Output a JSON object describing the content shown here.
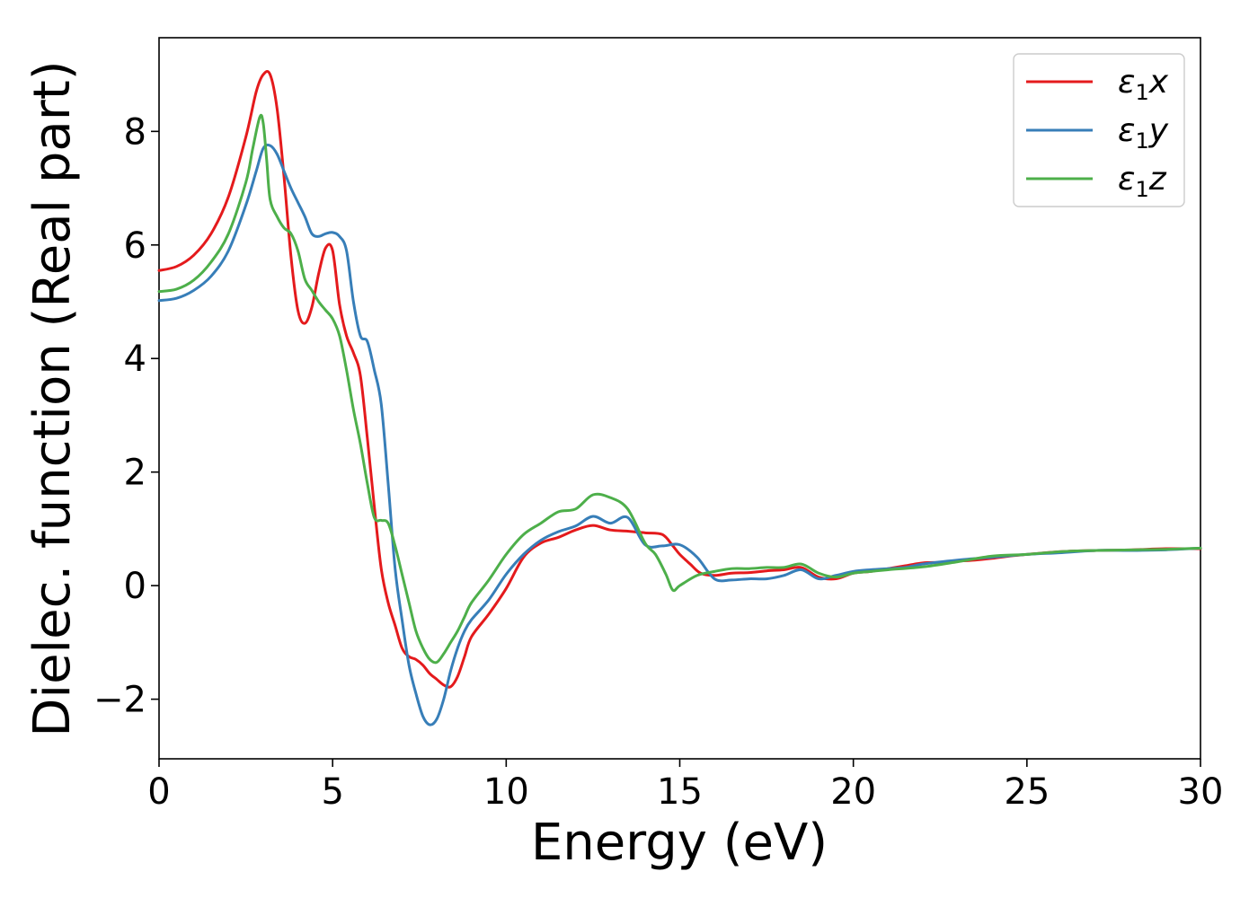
{
  "chart_data": {
    "type": "line",
    "xlabel": "Energy (eV)",
    "ylabel": "Dielec. function (Real part)",
    "xlim": [
      0,
      30
    ],
    "ylim": [
      -3.05,
      9.65
    ],
    "xticks": [
      0,
      5,
      10,
      15,
      20,
      25,
      30
    ],
    "yticks": [
      -2,
      0,
      2,
      4,
      6,
      8
    ],
    "grid": false,
    "legend_position": "top-right",
    "series": [
      {
        "name": "ε₁x",
        "legend_base": "ε",
        "legend_sub": "1",
        "legend_var": "x",
        "color": "#e41a1c",
        "x": [
          0,
          0.5,
          1,
          1.5,
          2,
          2.5,
          2.8,
          3.0,
          3.2,
          3.4,
          3.6,
          3.8,
          4.0,
          4.2,
          4.4,
          4.6,
          4.8,
          5.0,
          5.2,
          5.4,
          5.6,
          5.8,
          6.0,
          6.2,
          6.4,
          6.6,
          6.8,
          7.0,
          7.2,
          7.4,
          7.6,
          7.8,
          8.0,
          8.2,
          8.4,
          8.6,
          8.8,
          9.0,
          9.5,
          10.0,
          10.5,
          11.0,
          11.5,
          12.0,
          12.5,
          13.0,
          13.5,
          14.0,
          14.5,
          14.8,
          15.0,
          15.3,
          15.6,
          16.0,
          16.5,
          17.0,
          17.5,
          18.0,
          18.5,
          19.0,
          19.5,
          20.0,
          20.5,
          21.0,
          21.5,
          22.0,
          22.5,
          23.0,
          23.5,
          24.0,
          24.5,
          25.0,
          26.0,
          27.0,
          28.0,
          29.0,
          30.0
        ],
        "y": [
          5.55,
          5.62,
          5.82,
          6.2,
          6.85,
          7.9,
          8.7,
          9.0,
          9.0,
          8.4,
          7.2,
          5.8,
          4.85,
          4.62,
          4.9,
          5.5,
          5.95,
          5.9,
          4.95,
          4.4,
          4.1,
          3.7,
          2.6,
          1.4,
          0.3,
          -0.3,
          -0.7,
          -1.1,
          -1.25,
          -1.3,
          -1.4,
          -1.55,
          -1.65,
          -1.75,
          -1.78,
          -1.6,
          -1.25,
          -0.9,
          -0.5,
          -0.05,
          0.5,
          0.75,
          0.85,
          0.98,
          1.06,
          0.98,
          0.96,
          0.93,
          0.9,
          0.7,
          0.55,
          0.38,
          0.22,
          0.18,
          0.22,
          0.23,
          0.26,
          0.28,
          0.32,
          0.15,
          0.12,
          0.22,
          0.25,
          0.3,
          0.35,
          0.4,
          0.41,
          0.43,
          0.45,
          0.48,
          0.52,
          0.55,
          0.6,
          0.62,
          0.63,
          0.65,
          0.65
        ]
      },
      {
        "name": "ε₁y",
        "legend_base": "ε",
        "legend_sub": "1",
        "legend_var": "y",
        "color": "#377eb8",
        "x": [
          0,
          0.5,
          1,
          1.5,
          2,
          2.5,
          2.8,
          3.0,
          3.2,
          3.4,
          3.6,
          3.8,
          4.0,
          4.2,
          4.4,
          4.6,
          4.8,
          5.0,
          5.2,
          5.4,
          5.6,
          5.8,
          6.0,
          6.2,
          6.4,
          6.6,
          6.8,
          7.0,
          7.2,
          7.4,
          7.6,
          7.8,
          8.0,
          8.2,
          8.4,
          8.6,
          8.8,
          9.0,
          9.5,
          10.0,
          10.5,
          11.0,
          11.5,
          12.0,
          12.5,
          13.0,
          13.5,
          14.0,
          14.5,
          15.0,
          15.5,
          16.0,
          16.5,
          17.0,
          17.5,
          18.0,
          18.5,
          19.0,
          19.5,
          20.0,
          20.5,
          21.0,
          21.5,
          22.0,
          23.0,
          24.0,
          25.0,
          26.0,
          27.0,
          28.0,
          29.0,
          30.0
        ],
        "y": [
          5.02,
          5.06,
          5.2,
          5.45,
          5.9,
          6.7,
          7.3,
          7.7,
          7.75,
          7.6,
          7.3,
          7.0,
          6.75,
          6.5,
          6.2,
          6.15,
          6.2,
          6.22,
          6.15,
          5.9,
          5.0,
          4.4,
          4.3,
          3.8,
          3.2,
          1.8,
          0.3,
          -0.6,
          -1.4,
          -1.9,
          -2.3,
          -2.45,
          -2.35,
          -2.0,
          -1.5,
          -1.1,
          -0.8,
          -0.6,
          -0.25,
          0.2,
          0.55,
          0.8,
          0.95,
          1.05,
          1.22,
          1.1,
          1.2,
          0.72,
          0.7,
          0.72,
          0.5,
          0.12,
          0.1,
          0.12,
          0.12,
          0.18,
          0.28,
          0.12,
          0.18,
          0.25,
          0.28,
          0.3,
          0.32,
          0.38,
          0.45,
          0.5,
          0.55,
          0.58,
          0.62,
          0.62,
          0.63,
          0.66
        ]
      },
      {
        "name": "ε₁z",
        "legend_base": "ε",
        "legend_sub": "1",
        "legend_var": "z",
        "color": "#4daf4a",
        "x": [
          0,
          0.5,
          1,
          1.5,
          2,
          2.5,
          2.7,
          2.9,
          3.0,
          3.1,
          3.2,
          3.4,
          3.6,
          3.8,
          4.0,
          4.2,
          4.4,
          4.6,
          4.8,
          5.0,
          5.2,
          5.4,
          5.6,
          5.8,
          6.0,
          6.2,
          6.4,
          6.6,
          6.8,
          7.0,
          7.2,
          7.4,
          7.6,
          7.8,
          8.0,
          8.2,
          8.4,
          8.6,
          8.8,
          9.0,
          9.5,
          10.0,
          10.5,
          11.0,
          11.5,
          12.0,
          12.5,
          13.0,
          13.5,
          14.0,
          14.3,
          14.6,
          14.8,
          15.0,
          15.5,
          16.0,
          16.5,
          17.0,
          17.5,
          18.0,
          18.5,
          19.0,
          19.5,
          20.0,
          20.5,
          21.0,
          22.0,
          23.0,
          24.0,
          25.0,
          26.0,
          27.0,
          28.0,
          29.0,
          30.0
        ],
        "y": [
          5.18,
          5.22,
          5.38,
          5.7,
          6.2,
          7.1,
          7.7,
          8.25,
          8.15,
          7.5,
          6.8,
          6.5,
          6.3,
          6.2,
          5.9,
          5.4,
          5.2,
          5.0,
          4.85,
          4.7,
          4.4,
          3.8,
          3.1,
          2.5,
          1.8,
          1.2,
          1.15,
          1.1,
          0.7,
          0.2,
          -0.3,
          -0.8,
          -1.1,
          -1.3,
          -1.35,
          -1.2,
          -1.0,
          -0.8,
          -0.55,
          -0.3,
          0.1,
          0.55,
          0.9,
          1.1,
          1.3,
          1.35,
          1.6,
          1.55,
          1.35,
          0.75,
          0.55,
          0.2,
          -0.08,
          0.0,
          0.18,
          0.25,
          0.3,
          0.3,
          0.32,
          0.32,
          0.38,
          0.22,
          0.15,
          0.22,
          0.25,
          0.28,
          0.33,
          0.42,
          0.52,
          0.55,
          0.6,
          0.62,
          0.63,
          0.64,
          0.66
        ]
      }
    ]
  }
}
